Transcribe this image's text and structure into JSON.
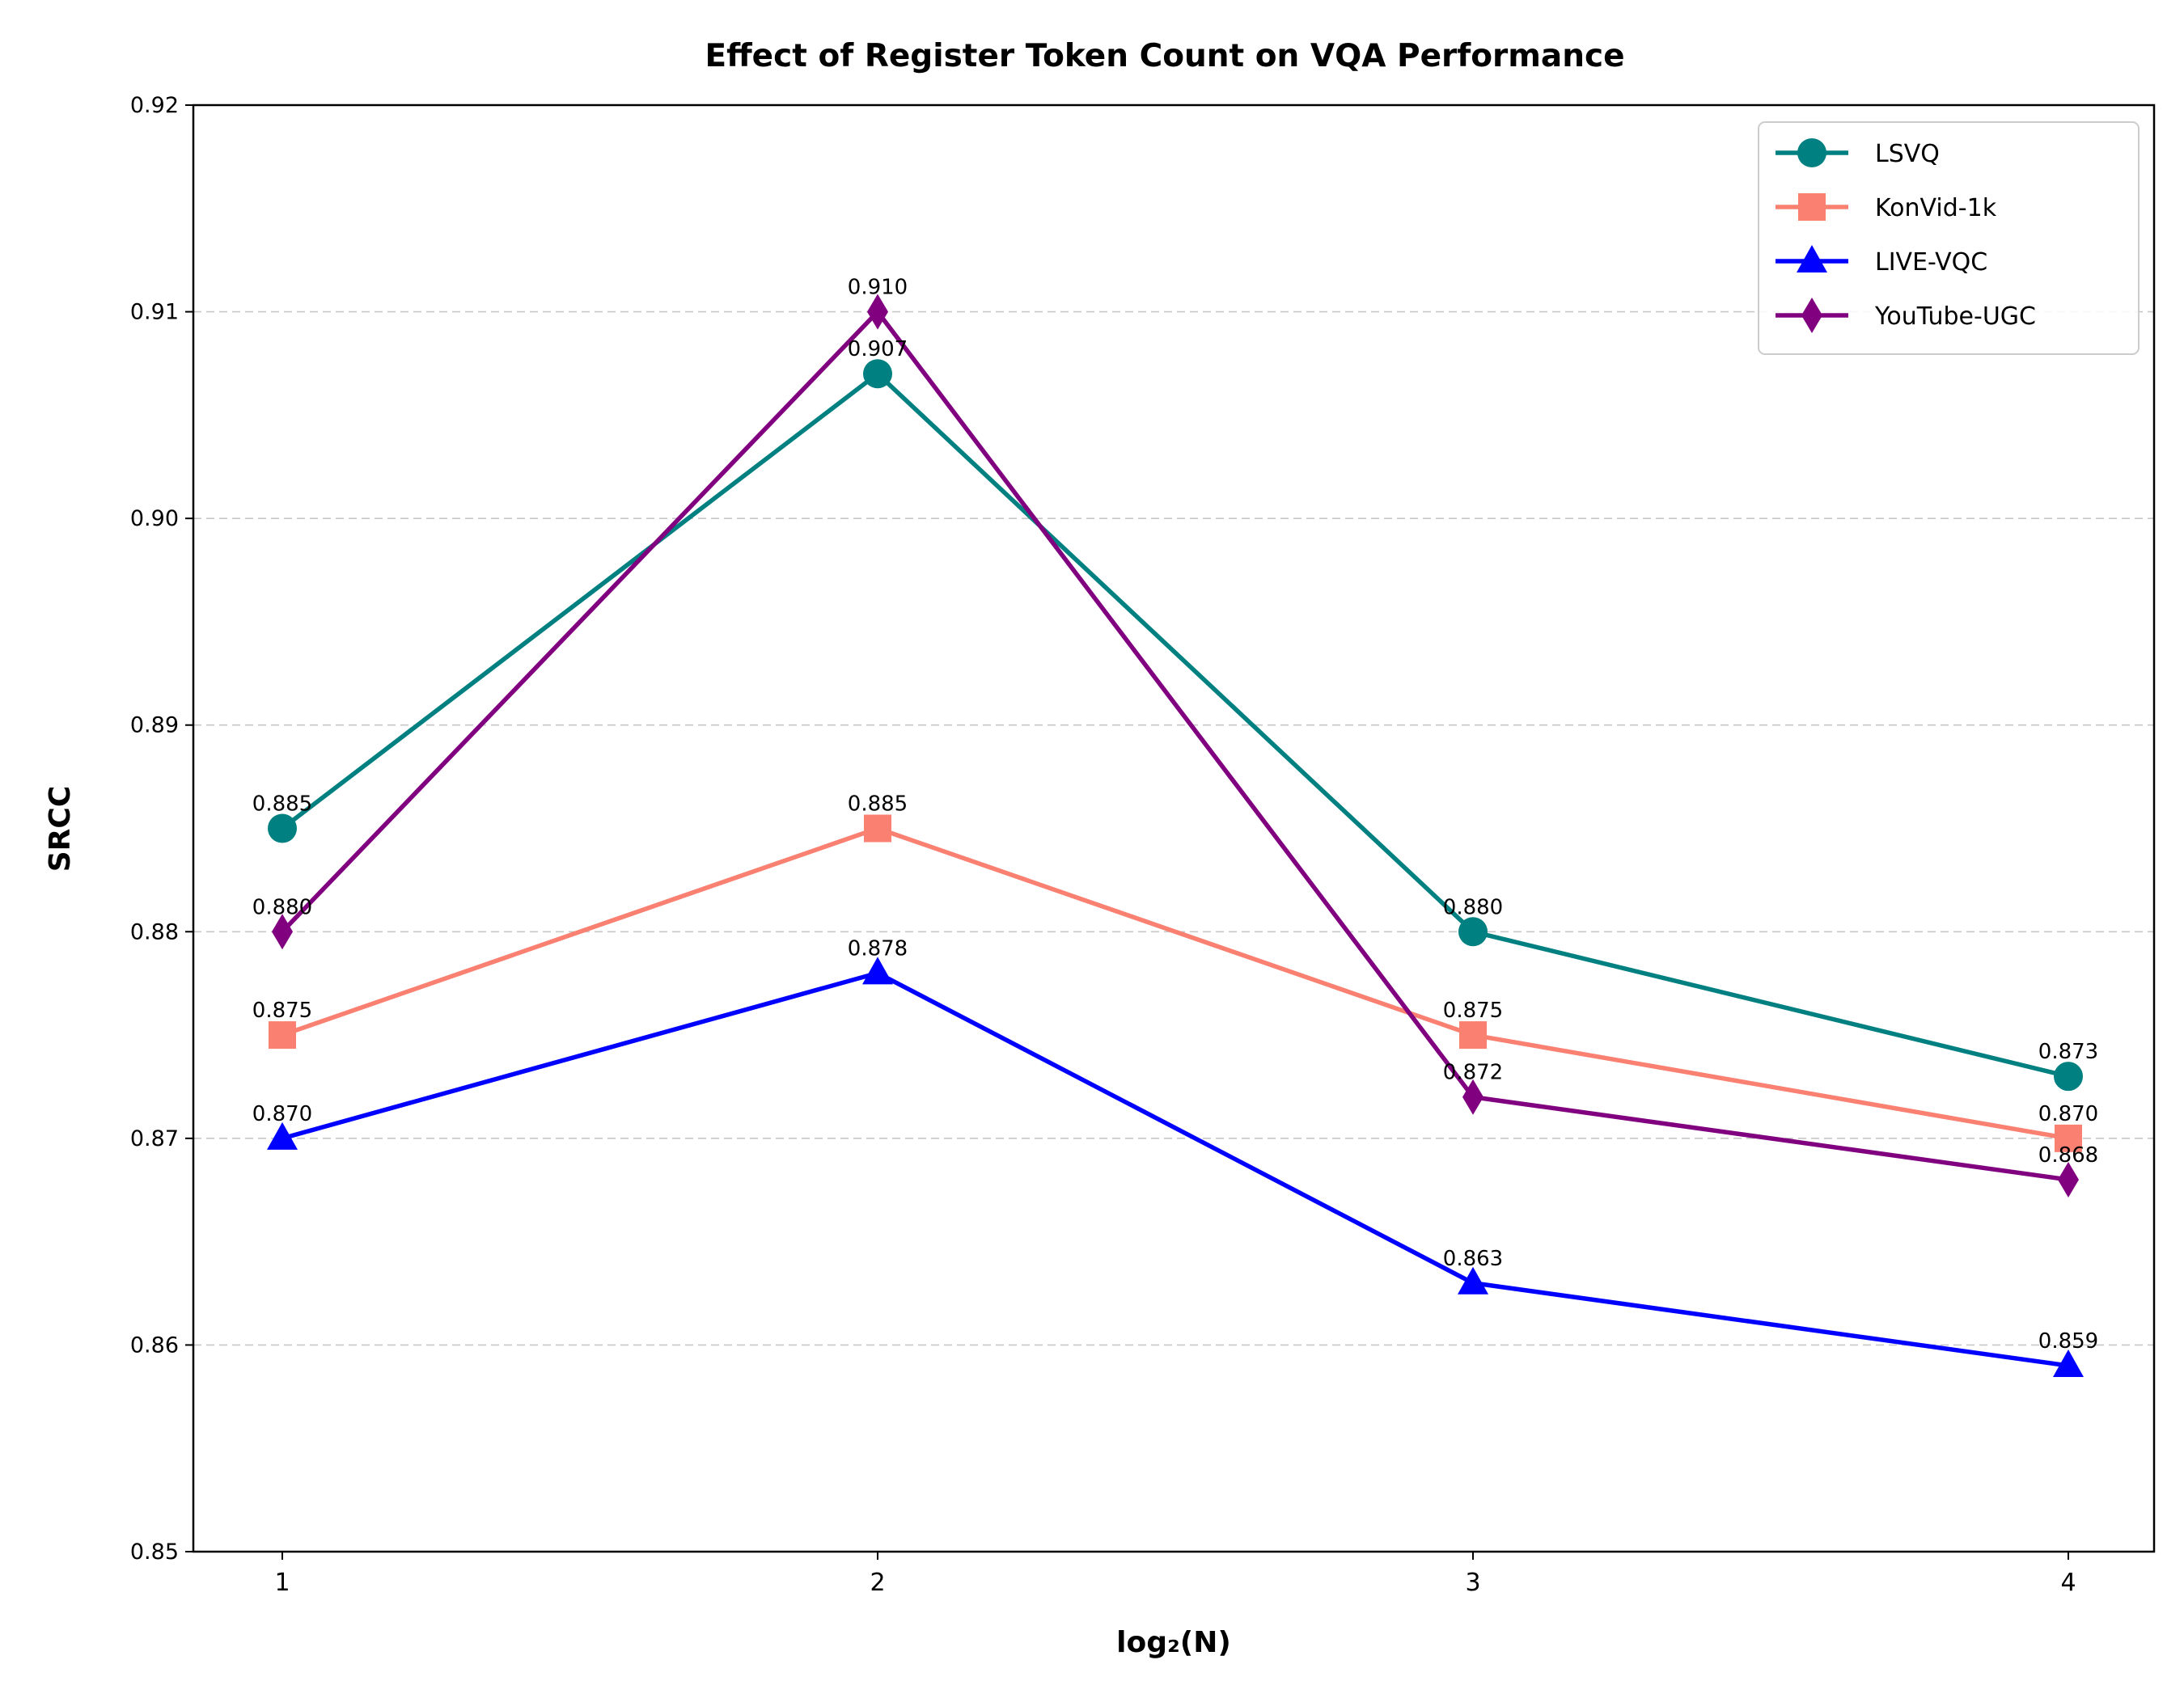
{
  "chart_data": {
    "type": "line",
    "title": "Effect of Register Token Count on VQA Performance",
    "xlabel": "log₂(N)",
    "ylabel": "SRCC",
    "x": [
      1,
      2,
      3,
      4
    ],
    "x_tick_labels": [
      "1",
      "2",
      "3",
      "4"
    ],
    "ylim": [
      0.85,
      0.92
    ],
    "y_ticks": [
      0.85,
      0.86,
      0.87,
      0.88,
      0.89,
      0.9,
      0.91,
      0.92
    ],
    "y_tick_labels": [
      "0.85",
      "0.86",
      "0.87",
      "0.88",
      "0.89",
      "0.90",
      "0.91",
      "0.92"
    ],
    "grid": "horizontal dashed",
    "legend_position": "top-right",
    "series": [
      {
        "name": "LSVQ",
        "color": "#008080",
        "marker": "circle",
        "values": [
          0.885,
          0.907,
          0.88,
          0.873
        ],
        "labels": [
          "0.885",
          "0.907",
          "0.880",
          "0.873"
        ]
      },
      {
        "name": "KonVid-1k",
        "color": "#FA8072",
        "marker": "square",
        "values": [
          0.875,
          0.885,
          0.875,
          0.87
        ],
        "labels": [
          "0.875",
          "0.885",
          "0.875",
          "0.870"
        ]
      },
      {
        "name": "LIVE-VQC",
        "color": "#0000FF",
        "marker": "triangle",
        "values": [
          0.87,
          0.878,
          0.863,
          0.859
        ],
        "labels": [
          "0.870",
          "0.878",
          "0.863",
          "0.859"
        ]
      },
      {
        "name": "YouTube-UGC",
        "color": "#800080",
        "marker": "diamond",
        "values": [
          0.88,
          0.91,
          0.872,
          0.868
        ],
        "labels": [
          "0.880",
          "0.910",
          "0.872",
          "0.868"
        ]
      }
    ]
  }
}
